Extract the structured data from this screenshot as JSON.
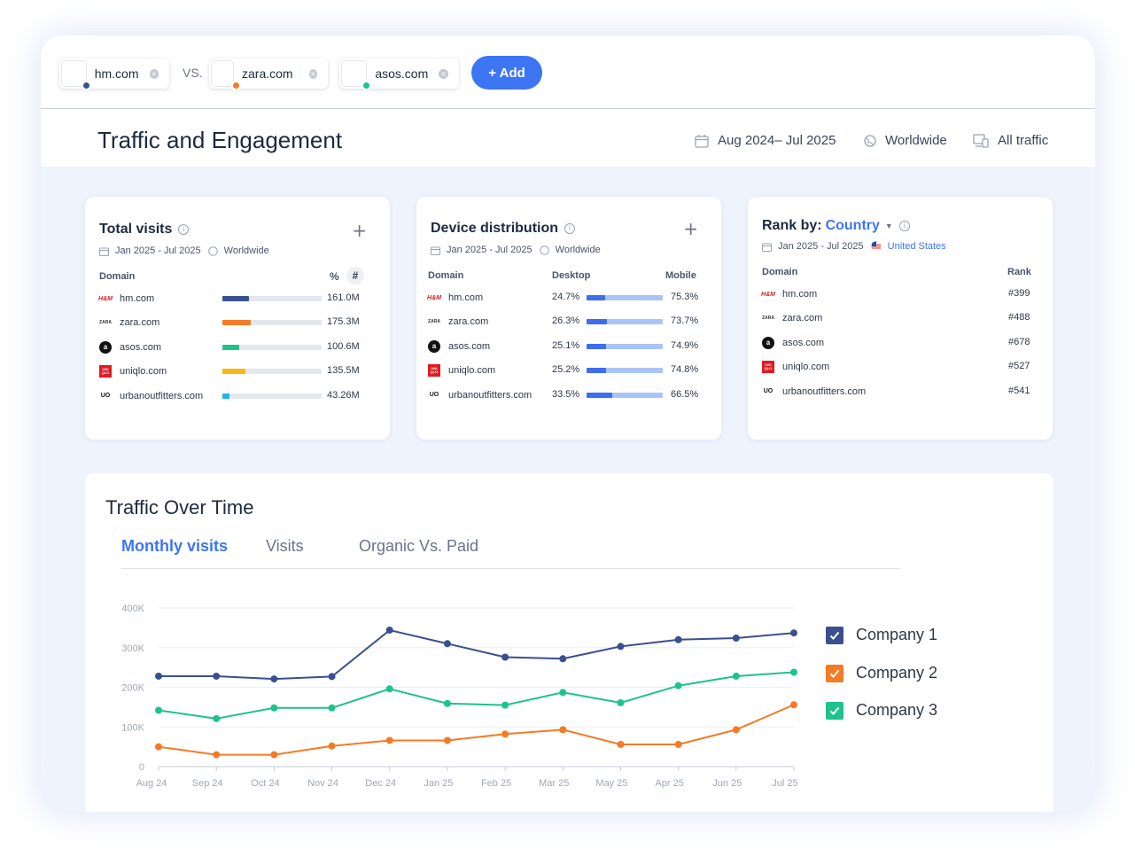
{
  "compare": {
    "sites": [
      {
        "name": "hm.com",
        "color": "#3a4f8f"
      },
      {
        "name": "zara.com",
        "color": "#f47b25"
      },
      {
        "name": "asos.com",
        "color": "#1fc28d"
      }
    ],
    "vs_label": "VS.",
    "add_label": "+ Add"
  },
  "header": {
    "title": "Traffic and Engagement",
    "date_range": "Aug 2024– Jul 2025",
    "region": "Worldwide",
    "traffic_type": "All traffic"
  },
  "total_visits": {
    "title": "Total visits",
    "date": "Jan 2025 - Jul 2025",
    "region": "Worldwide",
    "col_domain": "Domain",
    "col_pct": "%",
    "col_hash": "#",
    "rows": [
      {
        "brand": "H&M",
        "domain": "hm.com",
        "value": "161.0M",
        "fill": 0.27,
        "color": "#3a4f8f"
      },
      {
        "brand": "ZARA",
        "domain": "zara.com",
        "value": "175.3M",
        "fill": 0.29,
        "color": "#f47b25"
      },
      {
        "brand": "asos",
        "domain": "asos.com",
        "value": "100.6M",
        "fill": 0.17,
        "color": "#1fc28d"
      },
      {
        "brand": "UNI QLO",
        "domain": "uniqlo.com",
        "value": "135.5M",
        "fill": 0.23,
        "color": "#f6b812"
      },
      {
        "brand": "UO",
        "domain": "urbanoutfitters.com",
        "value": "43.26M",
        "fill": 0.07,
        "color": "#22b7e0"
      }
    ]
  },
  "device": {
    "title": "Device distribution",
    "date": "Jan 2025 - Jul 2025",
    "region": "Worldwide",
    "col_domain": "Domain",
    "col_desktop": "Desktop",
    "col_mobile": "Mobile",
    "rows": [
      {
        "domain": "hm.com",
        "desktop": "24.7%",
        "mobile": "75.3%",
        "desktop_share": 0.247
      },
      {
        "domain": "zara.com",
        "desktop": "26.3%",
        "mobile": "73.7%",
        "desktop_share": 0.263
      },
      {
        "domain": "asos.com",
        "desktop": "25.1%",
        "mobile": "74.9%",
        "desktop_share": 0.251
      },
      {
        "domain": "uniqlo.com",
        "desktop": "25.2%",
        "mobile": "74.8%",
        "desktop_share": 0.252
      },
      {
        "domain": "urbanoutfitters.com",
        "desktop": "33.5%",
        "mobile": "66.5%",
        "desktop_share": 0.335
      }
    ]
  },
  "rank": {
    "title": "Rank by:",
    "by": "Country",
    "date": "Jan 2025 - Jul 2025",
    "country": "United States",
    "col_domain": "Domain",
    "col_rank": "Rank",
    "rows": [
      {
        "domain": "hm.com",
        "rank": "#399"
      },
      {
        "domain": "zara.com",
        "rank": "#488"
      },
      {
        "domain": "asos.com",
        "rank": "#678"
      },
      {
        "domain": "uniqlo.com",
        "rank": "#527"
      },
      {
        "domain": "urbanoutfitters.com",
        "rank": "#541"
      }
    ]
  },
  "traffic": {
    "title": "Traffic Over Time",
    "tabs": [
      "Monthly visits",
      "Visits",
      "Organic Vs. Paid"
    ],
    "active_tab": 0
  },
  "chart_data": {
    "type": "line",
    "categories": [
      "Aug 24",
      "Sep 24",
      "Oct 24",
      "Nov 24",
      "Dec 24",
      "Jan 25",
      "Feb 25",
      "Mar 25",
      "May 25",
      "Apr 25",
      "Jun 25",
      "Jul 25"
    ],
    "y_ticks": [
      "0",
      "100K",
      "200K",
      "300K",
      "400K"
    ],
    "ylim": [
      0,
      400000
    ],
    "grid": true,
    "legend_position": "right",
    "series": [
      {
        "name": "Company 1",
        "color": "#3a4f8f",
        "values": [
          228000,
          228000,
          221000,
          227000,
          344000,
          310000,
          276000,
          272000,
          303000,
          320000,
          324000,
          337000
        ]
      },
      {
        "name": "Company 2",
        "color": "#f47b25",
        "values": [
          50000,
          30000,
          30000,
          52000,
          66000,
          66000,
          82000,
          93000,
          56000,
          56000,
          93000,
          156000
        ]
      },
      {
        "name": "Company 3",
        "color": "#1fc28d",
        "values": [
          142000,
          121000,
          148000,
          148000,
          196000,
          159000,
          155000,
          187000,
          161000,
          204000,
          228000,
          238000
        ]
      }
    ]
  }
}
